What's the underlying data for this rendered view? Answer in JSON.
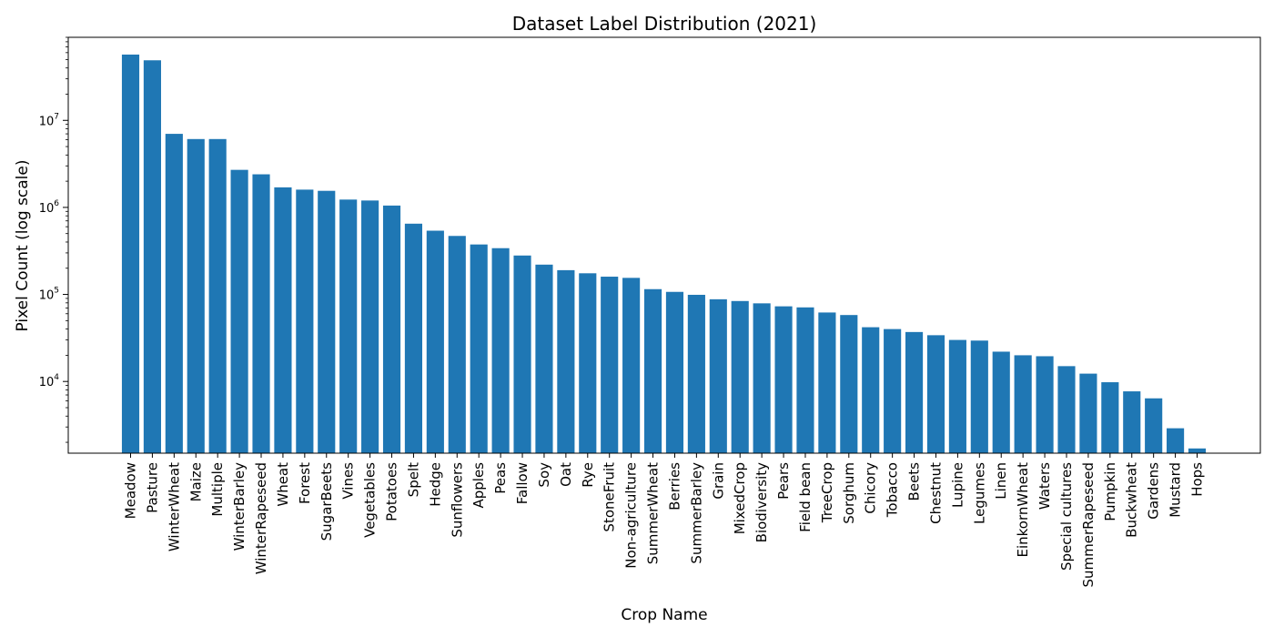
{
  "chart_data": {
    "type": "bar",
    "title": "Dataset Label Distribution (2021)",
    "xlabel": "Crop Name",
    "ylabel": "Pixel Count (log scale)",
    "yscale": "log",
    "ylim": [
      1500,
      90000000
    ],
    "yticks": [
      {
        "value": 10000,
        "base": "10",
        "exp": "4"
      },
      {
        "value": 100000,
        "base": "10",
        "exp": "5"
      },
      {
        "value": 1000000,
        "base": "10",
        "exp": "6"
      },
      {
        "value": 10000000,
        "base": "10",
        "exp": "7"
      }
    ],
    "bar_color": "#1f77b4",
    "grid": false,
    "categories": [
      "Meadow",
      "Pasture",
      "WinterWheat",
      "Maize",
      "Multiple",
      "WinterBarley",
      "WinterRapeseed",
      "Wheat",
      "Forest",
      "SugarBeets",
      "Vines",
      "Vegetables",
      "Potatoes",
      "Spelt",
      "Hedge",
      "Sunflowers",
      "Apples",
      "Peas",
      "Fallow",
      "Soy",
      "Oat",
      "Rye",
      "StoneFruit",
      "Non-agriculture",
      "SummerWheat",
      "Berries",
      "SummerBarley",
      "Grain",
      "MixedCrop",
      "Biodiversity",
      "Pears",
      "Field bean",
      "TreeCrop",
      "Sorghum",
      "Chicory",
      "Tobacco",
      "Beets",
      "Chestnut",
      "Lupine",
      "Legumes",
      "Linen",
      "EinkornWheat",
      "Waters",
      "Special cultures",
      "SummerRapeseed",
      "Pumpkin",
      "Buckwheat",
      "Gardens",
      "Mustard",
      "Hops"
    ],
    "values": [
      57000000,
      49000000,
      7000000,
      6100000,
      6100000,
      2700000,
      2400000,
      1700000,
      1600000,
      1550000,
      1230000,
      1200000,
      1050000,
      650000,
      540000,
      470000,
      375000,
      340000,
      280000,
      220000,
      190000,
      175000,
      160000,
      155000,
      115000,
      107000,
      99000,
      88000,
      84000,
      79000,
      73000,
      71000,
      62000,
      58000,
      42000,
      40000,
      37000,
      34000,
      30000,
      29500,
      22000,
      20000,
      19500,
      15000,
      12300,
      9800,
      7700,
      6400,
      2900,
      1700
    ]
  }
}
